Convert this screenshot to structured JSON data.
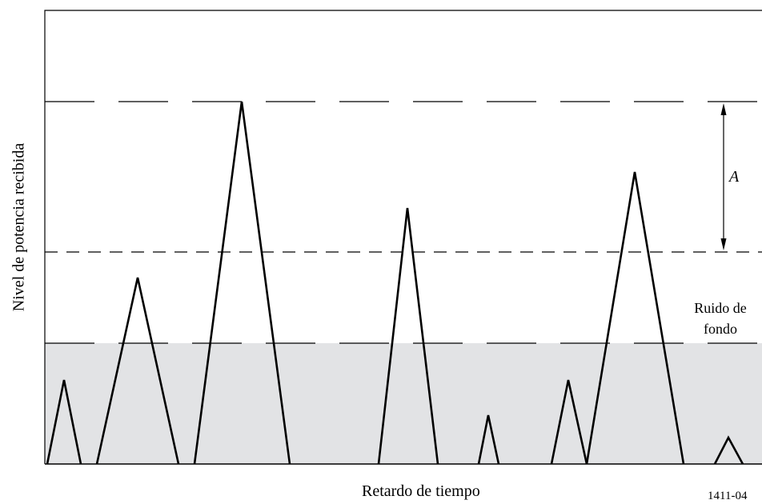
{
  "figure": {
    "y_axis_label": "Nivel de  potencia recibida",
    "x_axis_label": "Retardo de tiempo",
    "figure_id": "1411-04",
    "arrow_label": "A",
    "noise_label": "Ruido de fondo",
    "colors": {
      "line": "#000000",
      "noise_fill": "#e2e3e5",
      "background": "#ffffff"
    }
  }
}
